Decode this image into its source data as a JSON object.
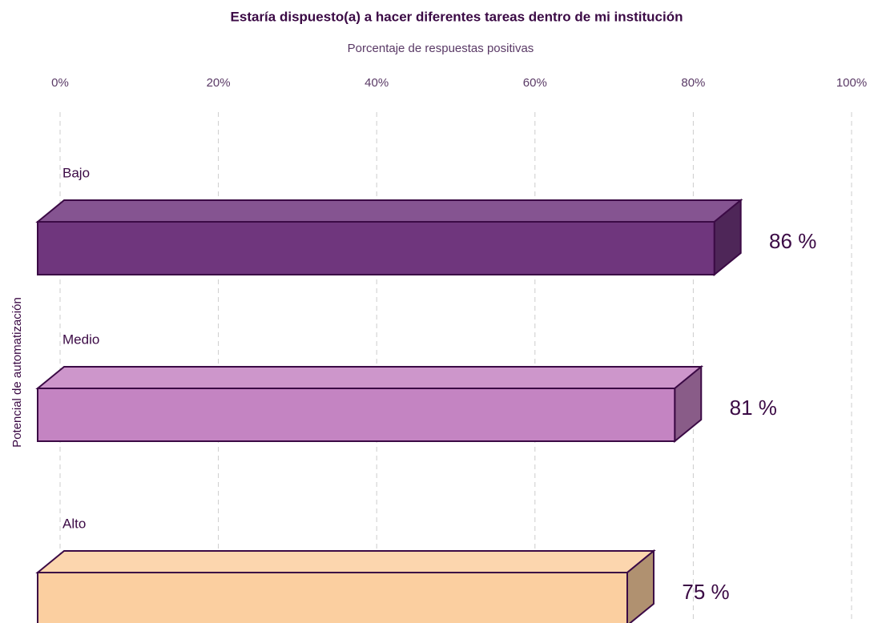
{
  "chart_data": {
    "type": "bar3d",
    "title": "Estaría dispuesto(a) a hacer diferentes tareas dentro de mi institución",
    "subtitle": "Porcentaje de respuestas positivas",
    "y_label": "Potencial de automatización",
    "categories": [
      "Bajo",
      "Medio",
      "Alto"
    ],
    "values": [
      86,
      81,
      75
    ],
    "value_labels": [
      "86 %",
      "81 %",
      "75 %"
    ],
    "colors": [
      "#6f367d",
      "#c484c2",
      "#fbcfa0"
    ],
    "xlim": [
      0,
      100
    ],
    "xticks": [
      {
        "value": 0,
        "label": "0%"
      },
      {
        "value": 20,
        "label": "20%"
      },
      {
        "value": 40,
        "label": "40%"
      },
      {
        "value": 60,
        "label": "60%"
      },
      {
        "value": 80,
        "label": "80%"
      },
      {
        "value": 100,
        "label": "100%"
      }
    ],
    "grid": true
  }
}
